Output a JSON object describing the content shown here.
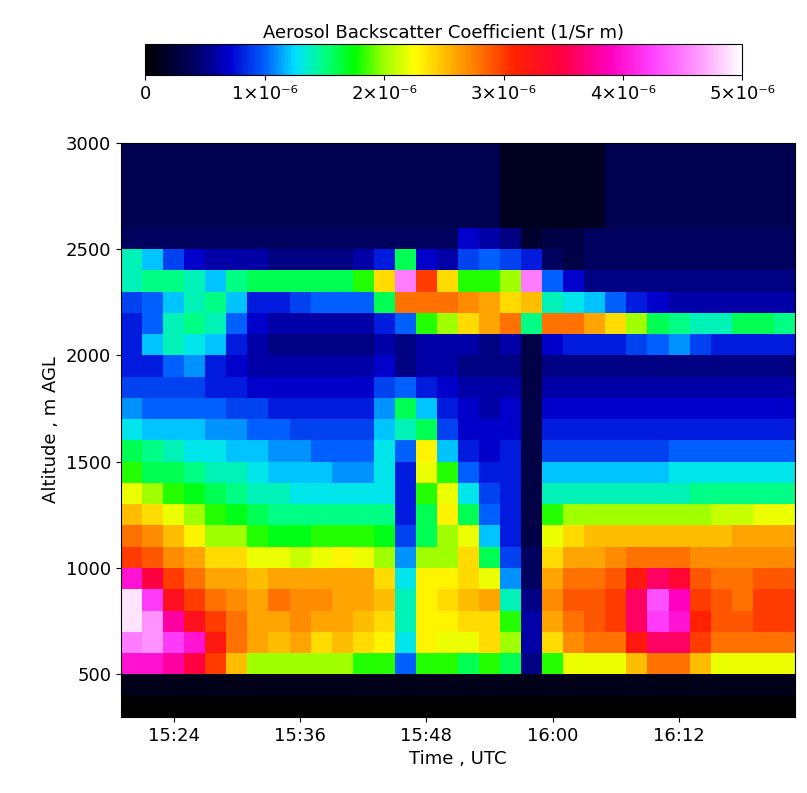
{
  "chart_data": {
    "type": "heatmap",
    "x_label": "Time , UTC",
    "y_label": "Altitude , m AGL",
    "xlim": [
      919,
      983
    ],
    "ylim": [
      300,
      3000
    ],
    "xticks": [
      {
        "value": 924,
        "label": "15:24"
      },
      {
        "value": 936,
        "label": "15:36"
      },
      {
        "value": 948,
        "label": "15:48"
      },
      {
        "value": 960,
        "label": "16:00"
      },
      {
        "value": 972,
        "label": "16:12"
      }
    ],
    "yticks": [
      500,
      1000,
      1500,
      2000,
      2500,
      3000
    ],
    "grid": false,
    "x": [
      919,
      921,
      923,
      925,
      927,
      929,
      931,
      933,
      935,
      937,
      939,
      941,
      943,
      945,
      947,
      949,
      951,
      953,
      955,
      957,
      959,
      961,
      963,
      965,
      967,
      969,
      971,
      973,
      975,
      977,
      979,
      981,
      983
    ],
    "y": [
      300,
      400,
      500,
      600,
      700,
      800,
      900,
      1000,
      1100,
      1200,
      1300,
      1400,
      1500,
      1600,
      1700,
      1800,
      1900,
      2000,
      2100,
      2200,
      2300,
      2400,
      2500,
      2600,
      2700,
      2800,
      2900,
      3000
    ],
    "cells": [
      [
        0,
        0,
        0,
        0,
        0,
        0,
        0,
        0,
        0,
        0,
        0,
        0,
        0,
        0,
        0,
        0,
        0,
        0,
        0,
        0,
        0,
        0,
        0,
        0,
        0,
        0,
        0,
        0,
        0,
        0,
        0,
        0
      ],
      [
        1e-07,
        1e-07,
        1e-07,
        1e-07,
        1e-07,
        1e-07,
        1e-07,
        1e-07,
        1e-07,
        1e-07,
        1e-07,
        1e-07,
        1e-07,
        1e-07,
        1e-07,
        1e-07,
        1e-07,
        1e-07,
        1e-07,
        1e-07,
        1e-07,
        1e-07,
        1e-07,
        1e-07,
        1e-07,
        1e-07,
        1e-07,
        1e-07,
        1e-07,
        1e-07,
        1e-07,
        1e-07
      ],
      [
        4e-06,
        4e-06,
        3.8e-06,
        3.5e-06,
        3e-06,
        2.5e-06,
        2e-06,
        2e-06,
        2e-06,
        2e-06,
        2e-06,
        1.8e-06,
        1.8e-06,
        1e-06,
        1.8e-06,
        1.8e-06,
        1.6e-06,
        1.8e-06,
        1.6e-06,
        5e-07,
        1.8e-06,
        2.2e-06,
        2.2e-06,
        2.2e-06,
        2.5e-06,
        2.8e-06,
        2.8e-06,
        2.5e-06,
        2.2e-06,
        2.2e-06,
        2.2e-06,
        2.2e-06
      ],
      [
        4.5e-06,
        4.6e-06,
        4.2e-06,
        4e-06,
        3.2e-06,
        2.8e-06,
        2.6e-06,
        2.5e-06,
        2.6e-06,
        2.4e-06,
        2.5e-06,
        2.4e-06,
        2.3e-06,
        1.3e-06,
        2.3e-06,
        2.2e-06,
        2.2e-06,
        2.4e-06,
        2e-06,
        6e-07,
        2.4e-06,
        2.7e-06,
        2.8e-06,
        2.8e-06,
        3.2e-06,
        3.6e-06,
        3.6e-06,
        3e-06,
        2.8e-06,
        2.8e-06,
        2.8e-06,
        2.8e-06
      ],
      [
        4.9e-06,
        4.6e-06,
        3.8e-06,
        3.3e-06,
        3e-06,
        2.8e-06,
        2.6e-06,
        2.6e-06,
        2.7e-06,
        2.6e-06,
        2.6e-06,
        2.5e-06,
        2.4e-06,
        1.4e-06,
        2.3e-06,
        2.3e-06,
        2.4e-06,
        2.4e-06,
        1.8e-06,
        6e-07,
        2.6e-06,
        2.8e-06,
        2.9e-06,
        3e-06,
        3.6e-06,
        4.2e-06,
        4e-06,
        3.1e-06,
        2.9e-06,
        2.9e-06,
        3e-06,
        3e-06
      ],
      [
        4.9e-06,
        4.2e-06,
        3.3e-06,
        3e-06,
        2.8e-06,
        2.7e-06,
        2.6e-06,
        2.8e-06,
        2.7e-06,
        2.7e-06,
        2.6e-06,
        2.6e-06,
        2.5e-06,
        1.4e-06,
        2.3e-06,
        2.4e-06,
        2.5e-06,
        2.6e-06,
        1.4e-06,
        5e-07,
        2.7e-06,
        2.9e-06,
        2.9e-06,
        3e-06,
        3.6e-06,
        4.3e-06,
        3.9e-06,
        3e-06,
        2.9e-06,
        2.8e-06,
        3e-06,
        3e-06
      ],
      [
        4e-06,
        3.5e-06,
        3e-06,
        2.8e-06,
        2.6e-06,
        2.6e-06,
        2.5e-06,
        2.6e-06,
        2.6e-06,
        2.6e-06,
        2.6e-06,
        2.6e-06,
        2.4e-06,
        1.3e-06,
        2.3e-06,
        2.3e-06,
        2.4e-06,
        2.2e-06,
        1.1e-06,
        4e-07,
        2.6e-06,
        2.8e-06,
        2.8e-06,
        2.9e-06,
        3.2e-06,
        3.6e-06,
        3.4e-06,
        2.9e-06,
        2.8e-06,
        2.8e-06,
        2.9e-06,
        2.9e-06
      ],
      [
        3e-06,
        2.9e-06,
        2.7e-06,
        2.6e-06,
        2.4e-06,
        2.4e-06,
        2.2e-06,
        2.2e-06,
        2.1e-06,
        2.2e-06,
        2.3e-06,
        2.2e-06,
        2e-06,
        1.1e-06,
        2e-06,
        2e-06,
        2.4e-06,
        1.6e-06,
        9e-07,
        4e-07,
        2.4e-06,
        2.6e-06,
        2.6e-06,
        2.7e-06,
        2.8e-06,
        2.8e-06,
        2.8e-06,
        2.7e-06,
        2.7e-06,
        2.7e-06,
        2.7e-06,
        2.7e-06
      ],
      [
        2.8e-06,
        2.7e-06,
        2.5e-06,
        2.3e-06,
        2e-06,
        2e-06,
        1.8e-06,
        1.7e-06,
        1.7e-06,
        1.8e-06,
        1.8e-06,
        1.8e-06,
        1.7e-06,
        9e-07,
        1.6e-06,
        2e-06,
        2.2e-06,
        1.2e-06,
        8e-07,
        3e-07,
        2.2e-06,
        2.4e-06,
        2.5e-06,
        2.5e-06,
        2.5e-06,
        2.5e-06,
        2.5e-06,
        2.5e-06,
        2.5e-06,
        2.6e-06,
        2.6e-06,
        2.6e-06
      ],
      [
        2.5e-06,
        2.4e-06,
        2.2e-06,
        2e-06,
        1.8e-06,
        1.7e-06,
        1.6e-06,
        1.5e-06,
        1.5e-06,
        1.5e-06,
        1.5e-06,
        1.5e-06,
        1.5e-06,
        8e-07,
        1.6e-06,
        2.3e-06,
        1.6e-06,
        1e-06,
        8e-07,
        3e-07,
        1.8e-06,
        2e-06,
        2e-06,
        2e-06,
        2e-06,
        2e-06,
        2e-06,
        2e-06,
        2.1e-06,
        2.1e-06,
        2.2e-06,
        2.2e-06
      ],
      [
        2.2e-06,
        2e-06,
        1.8e-06,
        1.7e-06,
        1.6e-06,
        1.5e-06,
        1.4e-06,
        1.4e-06,
        1.3e-06,
        1.3e-06,
        1.3e-06,
        1.3e-06,
        1.3e-06,
        8e-07,
        1.8e-06,
        2.2e-06,
        1.3e-06,
        9e-07,
        8e-07,
        3e-07,
        1.4e-06,
        1.4e-06,
        1.4e-06,
        1.4e-06,
        1.4e-06,
        1.4e-06,
        1.4e-06,
        1.5e-06,
        1.5e-06,
        1.5e-06,
        1.5e-06,
        1.5e-06
      ],
      [
        1.8e-06,
        1.6e-06,
        1.6e-06,
        1.5e-06,
        1.4e-06,
        1.4e-06,
        1.3e-06,
        1.2e-06,
        1.2e-06,
        1.2e-06,
        1.1e-06,
        1.1e-06,
        1.3e-06,
        8e-07,
        2.2e-06,
        1.8e-06,
        1e-06,
        8e-07,
        8e-07,
        3e-07,
        1.2e-06,
        1.2e-06,
        1.2e-06,
        1.2e-06,
        1.2e-06,
        1.2e-06,
        1.3e-06,
        1.3e-06,
        1.3e-06,
        1.3e-06,
        1.3e-06,
        1.3e-06
      ],
      [
        1.6e-06,
        1.5e-06,
        1.4e-06,
        1.3e-06,
        1.3e-06,
        1.2e-06,
        1.2e-06,
        1.1e-06,
        1.1e-06,
        1e-06,
        1e-06,
        1e-06,
        1.3e-06,
        1e-06,
        2.3e-06,
        1.2e-06,
        8e-07,
        7e-07,
        8e-07,
        3e-07,
        9e-07,
        9e-07,
        9e-07,
        9e-07,
        9e-07,
        9e-07,
        1e-06,
        1e-06,
        1e-06,
        1e-06,
        1e-06,
        1e-06
      ],
      [
        1.3e-06,
        1.2e-06,
        1.2e-06,
        1.2e-06,
        1.1e-06,
        1.1e-06,
        1e-06,
        1e-06,
        9e-07,
        9e-07,
        9e-07,
        9e-07,
        1.2e-06,
        1.4e-06,
        1.6e-06,
        9e-07,
        7e-07,
        7e-07,
        7e-07,
        3e-07,
        8e-07,
        8e-07,
        8e-07,
        8e-07,
        8e-07,
        8e-07,
        8e-07,
        8e-07,
        8e-07,
        8e-07,
        8e-07,
        8e-07
      ],
      [
        1.1e-06,
        1e-06,
        1e-06,
        1e-06,
        1e-06,
        9e-07,
        9e-07,
        8e-07,
        8e-07,
        8e-07,
        8e-07,
        8e-07,
        1.1e-06,
        1.6e-06,
        1.2e-06,
        8e-07,
        7e-07,
        6e-07,
        7e-07,
        3e-07,
        7e-07,
        7e-07,
        7e-07,
        7e-07,
        7e-07,
        7e-07,
        7e-07,
        7e-07,
        7e-07,
        7e-07,
        7e-07,
        7e-07
      ],
      [
        9e-07,
        9e-07,
        9e-07,
        9e-07,
        8e-07,
        8e-07,
        7e-07,
        7e-07,
        7e-07,
        7e-07,
        7e-07,
        7e-07,
        9e-07,
        1e-06,
        8e-07,
        7e-07,
        6e-07,
        6e-07,
        6e-07,
        3e-07,
        6e-07,
        6e-07,
        6e-07,
        6e-07,
        6e-07,
        6e-07,
        6e-07,
        6e-07,
        6e-07,
        6e-07,
        6e-07,
        6e-07
      ],
      [
        8e-07,
        8e-07,
        1e-06,
        1.1e-06,
        8e-07,
        7e-07,
        6e-07,
        6e-07,
        6e-07,
        6e-07,
        6e-07,
        6e-07,
        7e-07,
        5e-07,
        6e-07,
        6e-07,
        5e-07,
        5e-07,
        5e-07,
        3e-07,
        5e-07,
        5e-07,
        5e-07,
        5e-07,
        5e-07,
        5e-07,
        5e-07,
        5e-07,
        5e-07,
        5e-07,
        5e-07,
        5e-07
      ],
      [
        8e-07,
        1.2e-06,
        1.4e-06,
        1.3e-06,
        1.2e-06,
        8e-07,
        6e-07,
        5e-07,
        5e-07,
        5e-07,
        5e-07,
        5e-07,
        6e-07,
        5e-07,
        6e-07,
        6e-07,
        6e-07,
        5e-07,
        6e-07,
        3e-07,
        7e-07,
        8e-07,
        8e-07,
        8e-07,
        9e-07,
        1e-06,
        1.1e-06,
        9e-07,
        8e-07,
        8e-07,
        8e-07,
        8e-07
      ],
      [
        8e-07,
        1e-06,
        1.4e-06,
        1.5e-06,
        1.4e-06,
        1e-06,
        7e-07,
        6e-07,
        6e-07,
        6e-07,
        6e-07,
        6e-07,
        8e-07,
        1e-06,
        1.8e-06,
        2e-06,
        2.4e-06,
        2.6e-06,
        2.8e-06,
        1.5e-06,
        2.8e-06,
        2.8e-06,
        2.6e-06,
        2.4e-06,
        2e-06,
        1.6e-06,
        1.5e-06,
        1.4e-06,
        1.4e-06,
        1.6e-06,
        1.6e-06,
        1.5e-06
      ],
      [
        9e-07,
        1e-06,
        1.2e-06,
        1.4e-06,
        1.5e-06,
        1.2e-06,
        8e-07,
        8e-07,
        9e-07,
        1e-06,
        1e-06,
        1e-06,
        1.6e-06,
        2.8e-06,
        2.8e-06,
        2.8e-06,
        2.7e-06,
        2.6e-06,
        2.4e-06,
        2.5e-06,
        1.4e-06,
        1.3e-06,
        1.2e-06,
        1e-06,
        8e-07,
        7e-07,
        6e-07,
        6e-07,
        6e-07,
        6e-07,
        6e-07,
        6e-07
      ],
      [
        1.4e-06,
        1.5e-06,
        1.5e-06,
        1.4e-06,
        1.2e-06,
        1.5e-06,
        1.6e-06,
        1.6e-06,
        1.6e-06,
        1.6e-06,
        1.6e-06,
        1.8e-06,
        2.4e-06,
        4.5e-06,
        3e-06,
        2.4e-06,
        1.8e-06,
        1.8e-06,
        2e-06,
        4.5e-06,
        1e-06,
        7e-07,
        5e-07,
        5e-07,
        5e-07,
        5e-07,
        5e-07,
        5e-07,
        5e-07,
        5e-07,
        5e-07,
        5e-07
      ],
      [
        1.4e-06,
        1.2e-06,
        9e-07,
        7e-07,
        6e-07,
        6e-07,
        6e-07,
        5e-07,
        5e-07,
        5e-07,
        5e-07,
        6e-07,
        8e-07,
        1.6e-06,
        7e-07,
        6e-07,
        9e-07,
        1e-06,
        9e-07,
        8e-07,
        4e-07,
        3e-07,
        4e-07,
        4e-07,
        4e-07,
        4e-07,
        4e-07,
        4e-07,
        4e-07,
        4e-07,
        4e-07,
        4e-07
      ],
      [
        4e-07,
        4e-07,
        4e-07,
        4e-07,
        4e-07,
        4e-07,
        4e-07,
        4e-07,
        4e-07,
        4e-07,
        4e-07,
        4e-07,
        4e-07,
        4e-07,
        4e-07,
        4e-07,
        7e-07,
        6e-07,
        5e-07,
        2e-07,
        3e-07,
        3e-07,
        4e-07,
        4e-07,
        4e-07,
        4e-07,
        4e-07,
        4e-07,
        4e-07,
        4e-07,
        4e-07,
        4e-07
      ],
      [
        3.5e-07,
        3.5e-07,
        3.5e-07,
        3.5e-07,
        3.5e-07,
        3.5e-07,
        3.5e-07,
        3.5e-07,
        3.5e-07,
        3.5e-07,
        3.5e-07,
        3.5e-07,
        3.5e-07,
        3.5e-07,
        3.5e-07,
        3.5e-07,
        3.5e-07,
        3.5e-07,
        1.5e-07,
        1.5e-07,
        1.5e-07,
        1.5e-07,
        1.5e-07,
        3.5e-07,
        3.5e-07,
        3.5e-07,
        3.5e-07,
        3.5e-07,
        3.5e-07,
        3.5e-07,
        3.5e-07,
        3.5e-07
      ],
      [
        3.5e-07,
        3.5e-07,
        3.5e-07,
        3.5e-07,
        3.5e-07,
        3.5e-07,
        3.5e-07,
        3.5e-07,
        3.5e-07,
        3.5e-07,
        3.5e-07,
        3.5e-07,
        3.5e-07,
        3.5e-07,
        3.5e-07,
        3.5e-07,
        3.5e-07,
        3.5e-07,
        1.5e-07,
        1.5e-07,
        1.5e-07,
        1.5e-07,
        1.5e-07,
        3.5e-07,
        3.5e-07,
        3.5e-07,
        3.5e-07,
        3.5e-07,
        3.5e-07,
        3.5e-07,
        3.5e-07,
        3.5e-07
      ],
      [
        3.5e-07,
        3.5e-07,
        3.5e-07,
        3.5e-07,
        3.5e-07,
        3.5e-07,
        3.5e-07,
        3.5e-07,
        3.5e-07,
        3.5e-07,
        3.5e-07,
        3.5e-07,
        3.5e-07,
        3.5e-07,
        3.5e-07,
        3.5e-07,
        3.5e-07,
        3.5e-07,
        1.5e-07,
        1.5e-07,
        1.5e-07,
        1.5e-07,
        1.5e-07,
        3.5e-07,
        3.5e-07,
        3.5e-07,
        3.5e-07,
        3.5e-07,
        3.5e-07,
        3.5e-07,
        3.5e-07,
        3.5e-07
      ],
      [
        3.5e-07,
        3.5e-07,
        3.5e-07,
        3.5e-07,
        3.5e-07,
        3.5e-07,
        3.5e-07,
        3.5e-07,
        3.5e-07,
        3.5e-07,
        3.5e-07,
        3.5e-07,
        3.5e-07,
        3.5e-07,
        3.5e-07,
        3.5e-07,
        3.5e-07,
        3.5e-07,
        1.5e-07,
        1.5e-07,
        1.5e-07,
        1.5e-07,
        1.5e-07,
        3.5e-07,
        3.5e-07,
        3.5e-07,
        3.5e-07,
        3.5e-07,
        3.5e-07,
        3.5e-07,
        3.5e-07,
        3.5e-07
      ]
    ],
    "colorbar": {
      "label": "Aerosol Backscatter Coefficient (1/Sr m)",
      "range": [
        0,
        5e-06
      ],
      "ticks": [
        0,
        {
          "value": 1e-06,
          "label": "1×10⁻⁶"
        },
        {
          "value": 2e-06,
          "label": "2×10⁻⁶"
        },
        {
          "value": 3e-06,
          "label": "3×10⁻⁶"
        },
        {
          "value": 4e-06,
          "label": "4×10⁻⁶"
        },
        {
          "value": 5e-06,
          "label": "5×10⁻⁶"
        }
      ]
    }
  }
}
